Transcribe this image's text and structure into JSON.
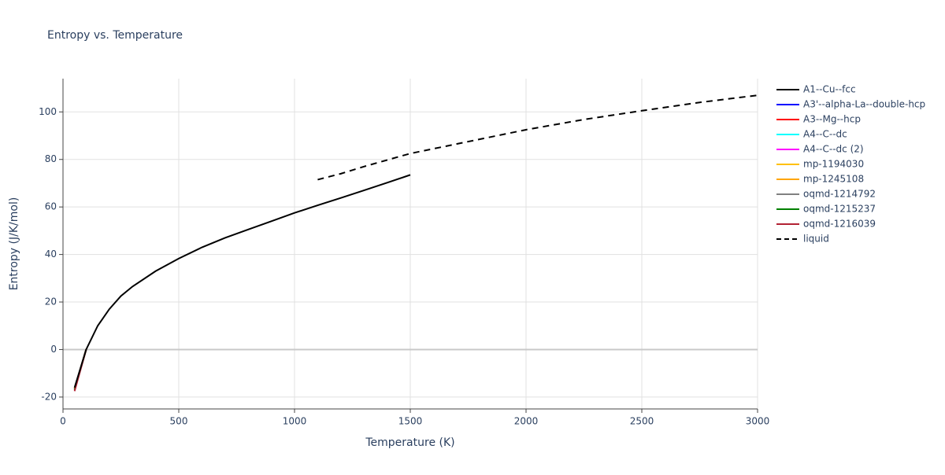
{
  "chart_data": {
    "type": "line",
    "title": "Entropy vs. Temperature",
    "x_label": "Temperature (K)",
    "y_label": "Entropy (J/K/mol)",
    "xlim": [
      0,
      3000
    ],
    "xticks": [
      0,
      500,
      1000,
      1500,
      2000,
      2500,
      3000
    ],
    "ylim": [
      -25,
      114
    ],
    "yticks": [
      -20,
      0,
      20,
      40,
      60,
      80,
      100
    ],
    "grid": true,
    "legend": "right",
    "series": [
      {
        "name": "A1--Cu--fcc",
        "color": "#000000",
        "dash": false,
        "x": [
          50,
          100,
          150,
          200,
          250,
          300,
          400,
          500,
          600,
          700,
          800,
          900,
          1000,
          1100,
          1200,
          1300,
          1400,
          1500
        ],
        "values": [
          -16,
          0,
          10,
          17,
          22.5,
          26.5,
          33,
          38.3,
          43,
          47,
          50.5,
          54,
          57.5,
          60.7,
          63.8,
          67,
          70.2,
          73.5
        ]
      },
      {
        "name": "A3'--alpha-La--double-hcp",
        "color": "#0000ff",
        "dash": false,
        "x": [
          50,
          100
        ],
        "values": [
          -16.5,
          0
        ]
      },
      {
        "name": "A3--Mg--hcp",
        "color": "#ff0000",
        "dash": false,
        "x": [
          50,
          100
        ],
        "values": [
          -16.5,
          0
        ]
      },
      {
        "name": "A4--C--dc",
        "color": "#00ffff",
        "dash": false,
        "x": [
          50,
          100
        ],
        "values": [
          -16.5,
          0
        ]
      },
      {
        "name": "A4--C--dc (2)",
        "color": "#ff00ff",
        "dash": false,
        "x": [
          50,
          100
        ],
        "values": [
          -16.5,
          0
        ]
      },
      {
        "name": "mp-1194030",
        "color": "#ffc000",
        "dash": false,
        "x": [
          50,
          100
        ],
        "values": [
          -16.5,
          0
        ]
      },
      {
        "name": "mp-1245108",
        "color": "#ffa500",
        "dash": false,
        "x": [
          50,
          100
        ],
        "values": [
          -16.5,
          0
        ]
      },
      {
        "name": "oqmd-1214792",
        "color": "#808080",
        "dash": false,
        "x": [
          50,
          100
        ],
        "values": [
          -17,
          0
        ]
      },
      {
        "name": "oqmd-1215237",
        "color": "#008000",
        "dash": false,
        "x": [
          50,
          100
        ],
        "values": [
          -17,
          0
        ]
      },
      {
        "name": "oqmd-1216039",
        "color": "#b22234",
        "dash": false,
        "x": [
          50,
          100
        ],
        "values": [
          -17.5,
          0
        ]
      },
      {
        "name": "liquid",
        "color": "#000000",
        "dash": true,
        "x": [
          1100,
          1200,
          1300,
          1500,
          1750,
          2000,
          2250,
          2500,
          2750,
          3000
        ],
        "values": [
          71.5,
          74,
          77,
          82.5,
          87.5,
          92.5,
          96.8,
          100.5,
          104,
          107
        ]
      }
    ]
  }
}
